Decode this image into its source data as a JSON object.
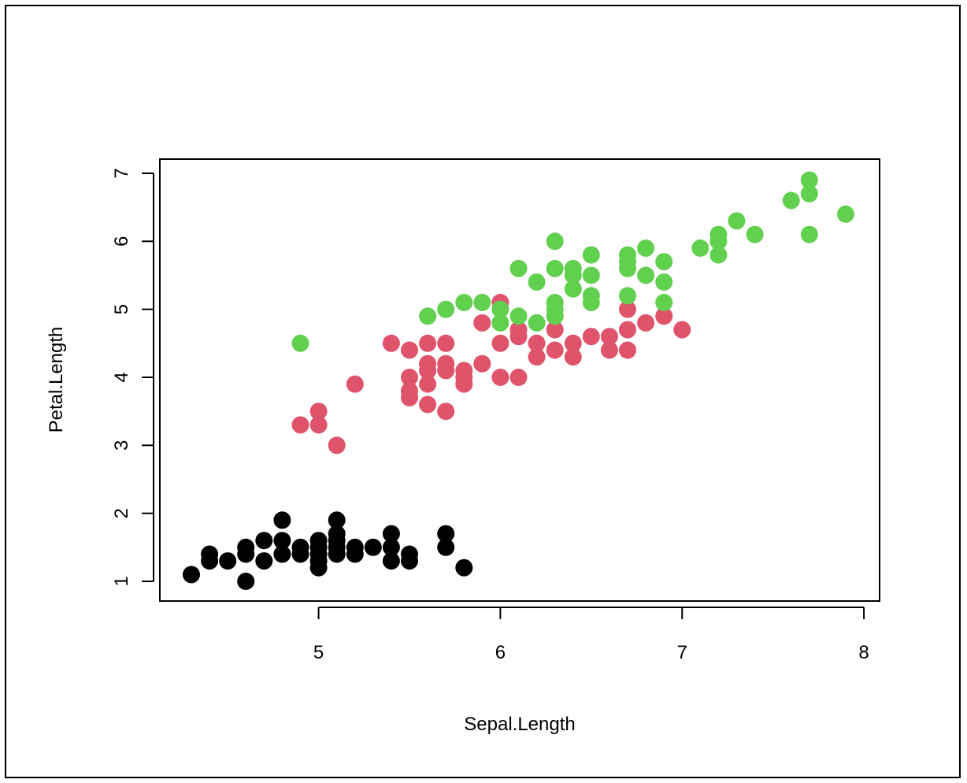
{
  "chart_data": {
    "type": "scatter",
    "title": "",
    "xlabel": "Sepal.Length",
    "ylabel": "Petal.Length",
    "xlim": [
      4.3,
      7.9
    ],
    "ylim": [
      1,
      7
    ],
    "x_ticks": [
      5,
      6,
      7,
      8
    ],
    "y_ticks": [
      1,
      2,
      3,
      4,
      5,
      6,
      7
    ],
    "x_tick_labels": [
      "5",
      "6",
      "7",
      "8"
    ],
    "y_tick_labels": [
      "1",
      "2",
      "3",
      "4",
      "5",
      "6",
      "7"
    ],
    "grid": false,
    "legend": null,
    "series": [
      {
        "color": "#000000",
        "points": [
          [
            4.3,
            1.1
          ],
          [
            4.4,
            1.3
          ],
          [
            4.4,
            1.4
          ],
          [
            4.5,
            1.3
          ],
          [
            4.6,
            1.0
          ],
          [
            4.6,
            1.4
          ],
          [
            4.6,
            1.5
          ],
          [
            4.7,
            1.3
          ],
          [
            4.7,
            1.6
          ],
          [
            4.8,
            1.4
          ],
          [
            4.8,
            1.6
          ],
          [
            4.8,
            1.9
          ],
          [
            4.9,
            1.4
          ],
          [
            4.9,
            1.5
          ],
          [
            5.0,
            1.2
          ],
          [
            5.0,
            1.3
          ],
          [
            5.0,
            1.4
          ],
          [
            5.0,
            1.5
          ],
          [
            5.0,
            1.6
          ],
          [
            5.1,
            1.4
          ],
          [
            5.1,
            1.5
          ],
          [
            5.1,
            1.6
          ],
          [
            5.1,
            1.7
          ],
          [
            5.1,
            1.9
          ],
          [
            5.2,
            1.4
          ],
          [
            5.2,
            1.5
          ],
          [
            5.3,
            1.5
          ],
          [
            5.4,
            1.3
          ],
          [
            5.4,
            1.5
          ],
          [
            5.4,
            1.7
          ],
          [
            5.5,
            1.3
          ],
          [
            5.5,
            1.4
          ],
          [
            5.7,
            1.5
          ],
          [
            5.7,
            1.7
          ],
          [
            5.8,
            1.2
          ]
        ]
      },
      {
        "color": "#DF536B",
        "points": [
          [
            4.9,
            3.3
          ],
          [
            5.0,
            3.3
          ],
          [
            5.0,
            3.5
          ],
          [
            5.1,
            3.0
          ],
          [
            5.2,
            3.9
          ],
          [
            5.4,
            4.5
          ],
          [
            5.5,
            3.7
          ],
          [
            5.5,
            3.8
          ],
          [
            5.5,
            4.0
          ],
          [
            5.5,
            4.4
          ],
          [
            5.6,
            3.6
          ],
          [
            5.6,
            3.9
          ],
          [
            5.6,
            4.1
          ],
          [
            5.6,
            4.2
          ],
          [
            5.6,
            4.5
          ],
          [
            5.7,
            3.5
          ],
          [
            5.7,
            4.1
          ],
          [
            5.7,
            4.2
          ],
          [
            5.7,
            4.5
          ],
          [
            5.8,
            3.9
          ],
          [
            5.8,
            4.0
          ],
          [
            5.8,
            4.1
          ],
          [
            5.9,
            4.2
          ],
          [
            5.9,
            4.8
          ],
          [
            6.0,
            4.0
          ],
          [
            6.0,
            4.5
          ],
          [
            6.0,
            5.1
          ],
          [
            6.1,
            4.0
          ],
          [
            6.1,
            4.6
          ],
          [
            6.1,
            4.7
          ],
          [
            6.2,
            4.3
          ],
          [
            6.2,
            4.5
          ],
          [
            6.3,
            4.4
          ],
          [
            6.3,
            4.7
          ],
          [
            6.3,
            4.9
          ],
          [
            6.4,
            4.3
          ],
          [
            6.4,
            4.5
          ],
          [
            6.5,
            4.6
          ],
          [
            6.6,
            4.4
          ],
          [
            6.6,
            4.6
          ],
          [
            6.7,
            4.4
          ],
          [
            6.7,
            4.7
          ],
          [
            6.7,
            5.0
          ],
          [
            6.8,
            4.8
          ],
          [
            6.9,
            4.9
          ],
          [
            7.0,
            4.7
          ]
        ]
      },
      {
        "color": "#61D04F",
        "points": [
          [
            4.9,
            4.5
          ],
          [
            5.6,
            4.9
          ],
          [
            5.7,
            5.0
          ],
          [
            5.8,
            5.1
          ],
          [
            5.9,
            5.1
          ],
          [
            6.0,
            4.8
          ],
          [
            6.0,
            5.0
          ],
          [
            6.1,
            4.9
          ],
          [
            6.1,
            5.6
          ],
          [
            6.2,
            4.8
          ],
          [
            6.2,
            5.4
          ],
          [
            6.3,
            4.9
          ],
          [
            6.3,
            5.0
          ],
          [
            6.3,
            5.1
          ],
          [
            6.3,
            5.6
          ],
          [
            6.3,
            6.0
          ],
          [
            6.4,
            5.3
          ],
          [
            6.4,
            5.5
          ],
          [
            6.4,
            5.6
          ],
          [
            6.5,
            5.1
          ],
          [
            6.5,
            5.2
          ],
          [
            6.5,
            5.5
          ],
          [
            6.5,
            5.8
          ],
          [
            6.7,
            5.2
          ],
          [
            6.7,
            5.6
          ],
          [
            6.7,
            5.7
          ],
          [
            6.7,
            5.8
          ],
          [
            6.8,
            5.5
          ],
          [
            6.8,
            5.9
          ],
          [
            6.9,
            5.1
          ],
          [
            6.9,
            5.4
          ],
          [
            6.9,
            5.7
          ],
          [
            7.1,
            5.9
          ],
          [
            7.2,
            5.8
          ],
          [
            7.2,
            6.0
          ],
          [
            7.2,
            6.1
          ],
          [
            7.3,
            6.3
          ],
          [
            7.4,
            6.1
          ],
          [
            7.6,
            6.6
          ],
          [
            7.7,
            6.1
          ],
          [
            7.7,
            6.7
          ],
          [
            7.7,
            6.9
          ],
          [
            7.9,
            6.4
          ]
        ]
      }
    ]
  }
}
